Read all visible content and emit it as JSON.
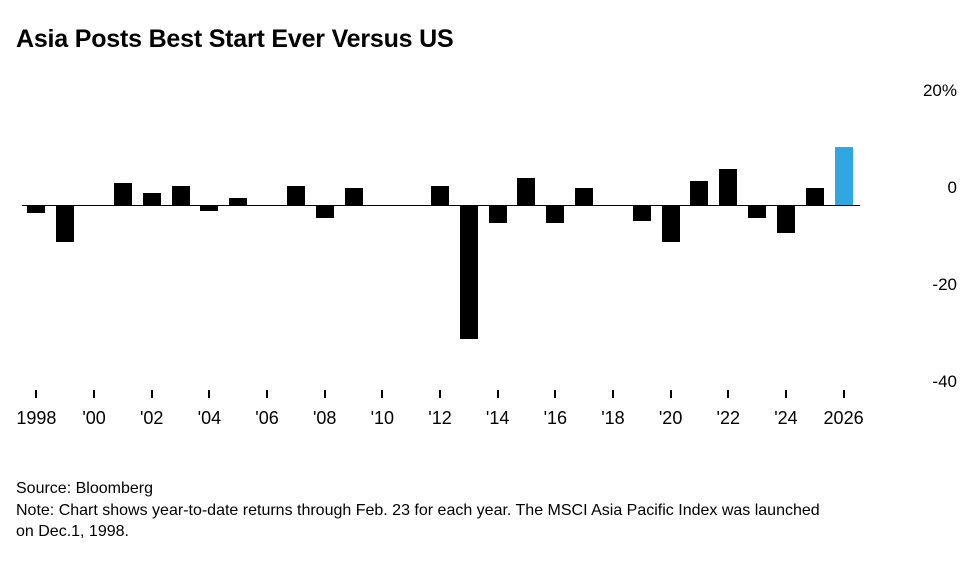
{
  "title": "Asia Posts Best Start Ever Versus US",
  "footer": {
    "source": "Source: Bloomberg",
    "note": "Note: Chart shows year-to-date returns through Feb. 23 for each year. The MSCI Asia Pacific Index was launched on Dec.1, 1998."
  },
  "colors": {
    "bar": "#000000",
    "highlight": "#2fa8e1",
    "axis": "#000000"
  },
  "chart_data": {
    "type": "bar",
    "title": "Asia Posts Best Start Ever Versus US",
    "unit": "%",
    "years": [
      1998,
      1999,
      2000,
      2001,
      2002,
      2003,
      2004,
      2005,
      2006,
      2007,
      2008,
      2009,
      2010,
      2011,
      2012,
      2013,
      2014,
      2015,
      2016,
      2017,
      2018,
      2019,
      2020,
      2021,
      2022,
      2023,
      2024,
      2025,
      2026
    ],
    "values": [
      -1.5,
      -7.5,
      0,
      4.5,
      2.5,
      4,
      -1,
      1.5,
      0,
      4,
      -2.5,
      3.5,
      0,
      0,
      4,
      -27.5,
      -3.5,
      5.5,
      -3.5,
      3.5,
      0,
      -3,
      -7.5,
      5,
      7.5,
      -2.5,
      -5.5,
      3.5,
      12
    ],
    "highlight_year": 2026,
    "bar_color": "#000000",
    "highlight_color": "#2fa8e1",
    "ylim": [
      -42,
      24
    ],
    "grid": "zero-line-only",
    "legend": "none",
    "y_ticks": [
      {
        "value": 20,
        "label": "20%"
      },
      {
        "value": 0,
        "label": "0"
      },
      {
        "value": -20,
        "label": "-20"
      },
      {
        "value": -40,
        "label": "-40"
      }
    ],
    "x_tick_years": [
      1998,
      2000,
      2002,
      2004,
      2006,
      2008,
      2010,
      2012,
      2014,
      2016,
      2018,
      2020,
      2022,
      2024,
      2026
    ],
    "x_tick_labels": [
      "1998",
      "'00",
      "'02",
      "'04",
      "'06",
      "'08",
      "'10",
      "'12",
      "'14",
      "'16",
      "'18",
      "'20",
      "'22",
      "'24",
      "2026"
    ]
  }
}
